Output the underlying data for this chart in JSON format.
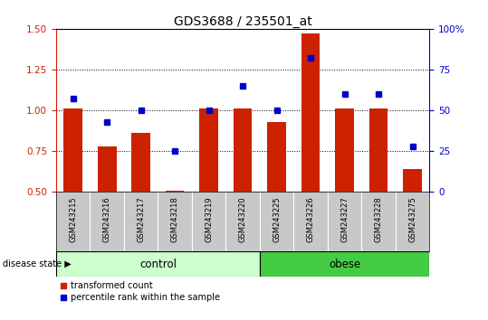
{
  "title": "GDS3688 / 235501_at",
  "samples": [
    "GSM243215",
    "GSM243216",
    "GSM243217",
    "GSM243218",
    "GSM243219",
    "GSM243220",
    "GSM243225",
    "GSM243226",
    "GSM243227",
    "GSM243228",
    "GSM243275"
  ],
  "transformed_count": [
    1.01,
    0.78,
    0.86,
    0.51,
    1.01,
    1.01,
    0.93,
    1.47,
    1.01,
    1.01,
    0.64
  ],
  "percentile_rank": [
    57,
    43,
    50,
    25,
    50,
    65,
    50,
    82,
    60,
    60,
    28
  ],
  "n_control": 6,
  "n_obese": 5,
  "ylim_left": [
    0.5,
    1.5
  ],
  "ylim_right": [
    0,
    100
  ],
  "yticks_left": [
    0.5,
    0.75,
    1.0,
    1.25,
    1.5
  ],
  "yticks_right": [
    0,
    25,
    50,
    75,
    100
  ],
  "bar_color": "#cc2200",
  "dot_color": "#0000cc",
  "control_color": "#ccffcc",
  "obese_color": "#44cc44",
  "axis_color_left": "#cc2200",
  "axis_color_right": "#0000cc",
  "baseline": 0.5,
  "background_color": "#ffffff",
  "label_bg_color": "#c8c8c8",
  "grid_color": "#000000",
  "disease_state_label": "disease state ▶",
  "legend_label_red": "transformed count",
  "legend_label_blue": "percentile rank within the sample"
}
